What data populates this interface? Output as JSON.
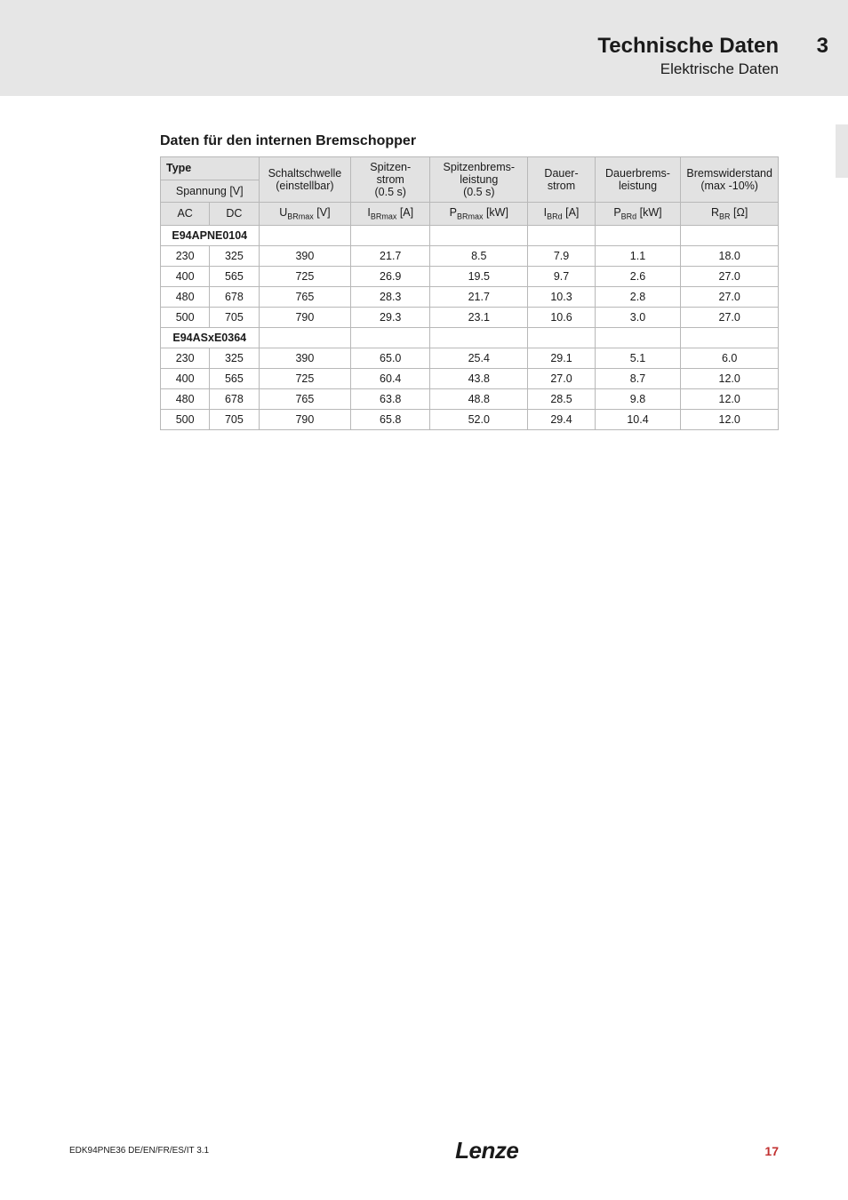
{
  "header": {
    "title": "Technische Daten",
    "subtitle": "Elektrische Daten",
    "chapter": "3"
  },
  "section_title": "Daten für den internen Bremschopper",
  "table": {
    "type": "table",
    "background_color": "#ffffff",
    "border_color": "#b8b8b8",
    "header_bg": "#e2e2e2",
    "font_size": 12.5,
    "col_widths_pct": [
      8,
      8,
      15,
      13,
      16,
      11,
      14,
      15
    ],
    "header": {
      "type_label": "Type",
      "spannung": "Spannung [V]",
      "ac": "AC",
      "dc": "DC",
      "schaltschwelle_l1": "Schaltschwelle",
      "schaltschwelle_l2": "(einstellbar)",
      "spitzenstrom_l1": "Spitzen-",
      "spitzenstrom_l2": "strom",
      "spitzenstrom_l3": "(0.5 s)",
      "spitzenbrems_l1": "Spitzenbrems-",
      "spitzenbrems_l2": "leistung",
      "spitzenbrems_l3": "(0.5 s)",
      "dauerstrom_l1": "Dauer-",
      "dauerstrom_l2": "strom",
      "dauerbrems_l1": "Dauerbrems-",
      "dauerbrems_l2": "leistung",
      "bremswider_l1": "Bremswiderstand",
      "bremswider_l2": "(max -10%)",
      "u_brmax": "UBRmax [V]",
      "i_brmax": "IBRmax [A]",
      "p_brmax": "PBRmax [kW]",
      "i_brd": "IBRd [A]",
      "p_brd": "PBRd [kW]",
      "r_br": "RBR [Ω]"
    },
    "groups": [
      {
        "name": "E94APNE0104",
        "rows": [
          {
            "ac": "230",
            "dc": "325",
            "u": "390",
            "imax": "21.7",
            "pmax": "8.5",
            "id": "7.9",
            "pd": "1.1",
            "r": "18.0"
          },
          {
            "ac": "400",
            "dc": "565",
            "u": "725",
            "imax": "26.9",
            "pmax": "19.5",
            "id": "9.7",
            "pd": "2.6",
            "r": "27.0"
          },
          {
            "ac": "480",
            "dc": "678",
            "u": "765",
            "imax": "28.3",
            "pmax": "21.7",
            "id": "10.3",
            "pd": "2.8",
            "r": "27.0"
          },
          {
            "ac": "500",
            "dc": "705",
            "u": "790",
            "imax": "29.3",
            "pmax": "23.1",
            "id": "10.6",
            "pd": "3.0",
            "r": "27.0"
          }
        ]
      },
      {
        "name": "E94ASxE0364",
        "rows": [
          {
            "ac": "230",
            "dc": "325",
            "u": "390",
            "imax": "65.0",
            "pmax": "25.4",
            "id": "29.1",
            "pd": "5.1",
            "r": "6.0"
          },
          {
            "ac": "400",
            "dc": "565",
            "u": "725",
            "imax": "60.4",
            "pmax": "43.8",
            "id": "27.0",
            "pd": "8.7",
            "r": "12.0"
          },
          {
            "ac": "480",
            "dc": "678",
            "u": "765",
            "imax": "63.8",
            "pmax": "48.8",
            "id": "28.5",
            "pd": "9.8",
            "r": "12.0"
          },
          {
            "ac": "500",
            "dc": "705",
            "u": "790",
            "imax": "65.8",
            "pmax": "52.0",
            "id": "29.4",
            "pd": "10.4",
            "r": "12.0"
          }
        ]
      }
    ]
  },
  "footer": {
    "doc_id": "EDK94PNE36  DE/EN/FR/ES/IT  3.1",
    "logo": "Lenze",
    "page": "17",
    "page_color": "#c23030"
  }
}
